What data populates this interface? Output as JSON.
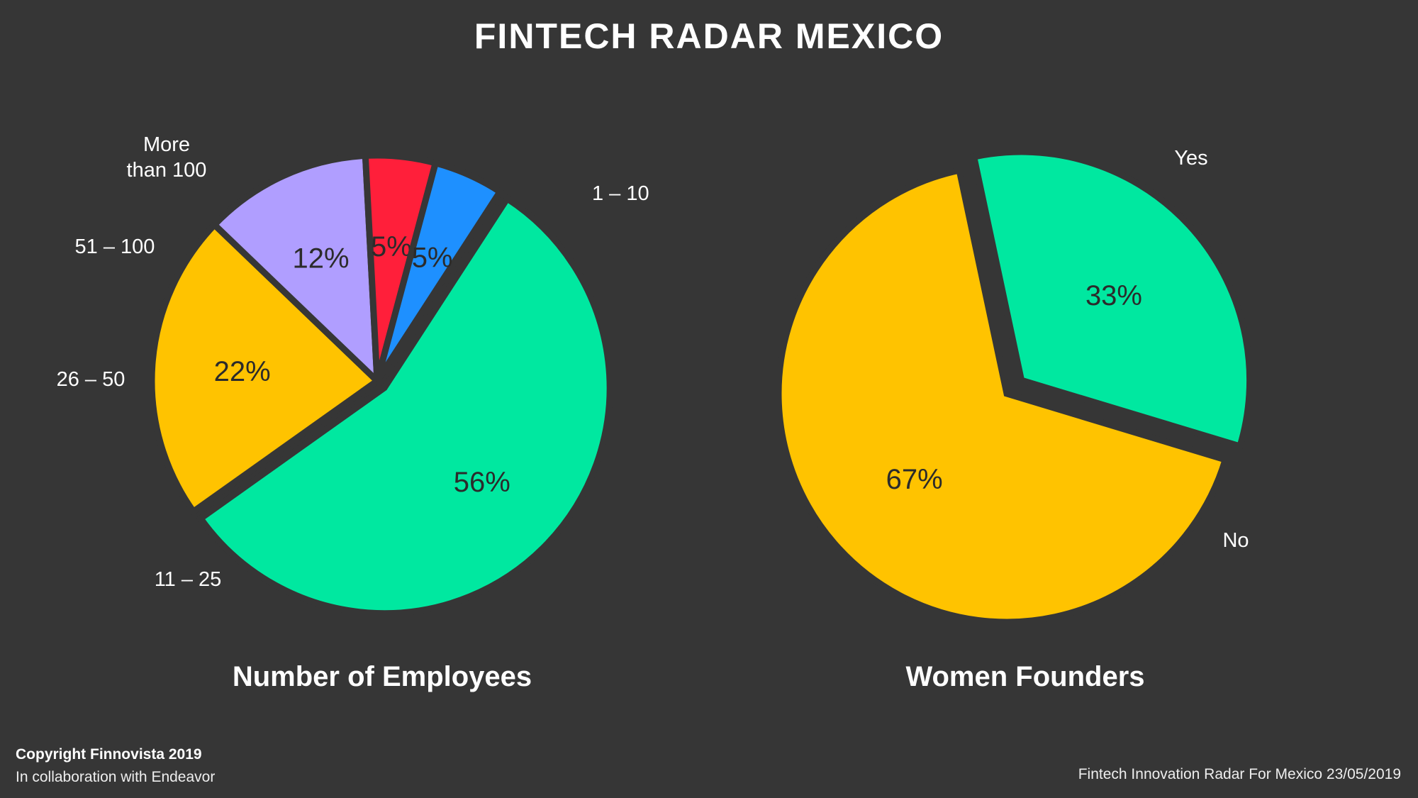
{
  "page": {
    "title": "FINTECH RADAR MEXICO",
    "copyright": "Copyright Finnovista 2019",
    "collaboration": "In collaboration with Endeavor",
    "source_note": "Fintech Innovation Radar For Mexico 23/05/2019"
  },
  "colors": {
    "background": "#363636",
    "green": "#00E8A0",
    "yellow": "#FFC300",
    "lavender": "#B09EFF",
    "red": "#FF1F3A",
    "blue": "#1E90FF",
    "value_text": "#2B2B2B"
  },
  "chart_data": [
    {
      "type": "pie",
      "title": "Number of Employees",
      "slices": [
        {
          "label": "1 – 10",
          "value": 56,
          "display": "56%",
          "color": "#00E8A0",
          "exploded": true
        },
        {
          "label": "11 – 25",
          "value": 22,
          "display": "22%",
          "color": "#FFC300",
          "exploded": false
        },
        {
          "label": "26 – 50",
          "value": 12,
          "display": "12%",
          "color": "#B09EFF",
          "exploded": false
        },
        {
          "label": "51 – 100",
          "value": 5,
          "display": "5%",
          "color": "#FF1F3A",
          "exploded": false
        },
        {
          "label": "More than 100",
          "value": 5,
          "display": "5%",
          "color": "#1E90FF",
          "exploded": false
        }
      ]
    },
    {
      "type": "pie",
      "title": "Women Founders",
      "slices": [
        {
          "label": "Yes",
          "value": 33,
          "display": "33%",
          "color": "#00E8A0",
          "exploded": true
        },
        {
          "label": "No",
          "value": 67,
          "display": "67%",
          "color": "#FFC300",
          "exploded": false
        }
      ]
    }
  ]
}
